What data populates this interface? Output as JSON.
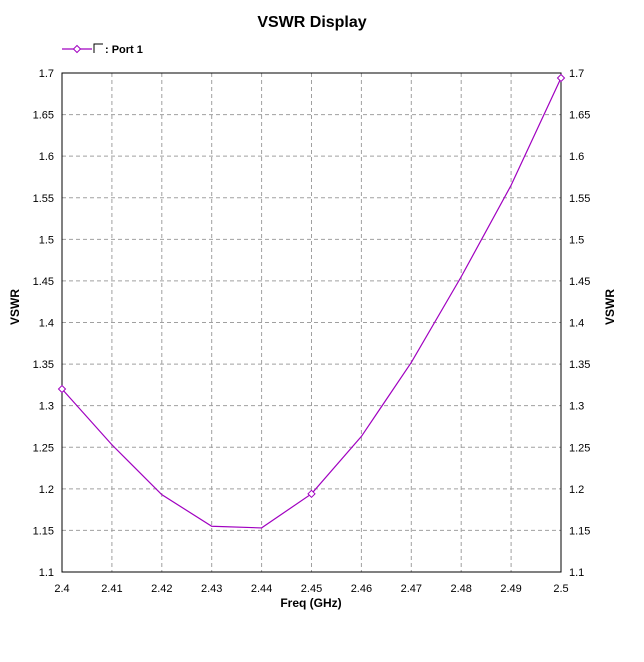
{
  "chart_data": {
    "type": "line",
    "title": "VSWR Display",
    "xlabel": "Freq (GHz)",
    "ylabel": "VSWR",
    "xlim": [
      2.4,
      2.5
    ],
    "ylim": [
      1.1,
      1.7
    ],
    "x_ticks": [
      "2.4",
      "2.41",
      "2.42",
      "2.43",
      "2.44",
      "2.45",
      "2.46",
      "2.47",
      "2.48",
      "2.49",
      "2.5"
    ],
    "y_ticks": [
      "1.1",
      "1.15",
      "1.2",
      "1.25",
      "1.3",
      "1.35",
      "1.4",
      "1.45",
      "1.5",
      "1.55",
      "1.6",
      "1.65",
      "1.7"
    ],
    "grid": true,
    "legend_position": "top-left",
    "series": [
      {
        "name": ": Port 1",
        "color": "#a000c0",
        "x": [
          2.4,
          2.41,
          2.42,
          2.43,
          2.44,
          2.45,
          2.46,
          2.47,
          2.48,
          2.49,
          2.5
        ],
        "y": [
          1.32,
          1.253,
          1.193,
          1.155,
          1.153,
          1.194,
          1.263,
          1.352,
          1.455,
          1.565,
          1.694
        ],
        "marker_x": [
          2.4,
          2.45,
          2.5
        ]
      }
    ]
  }
}
